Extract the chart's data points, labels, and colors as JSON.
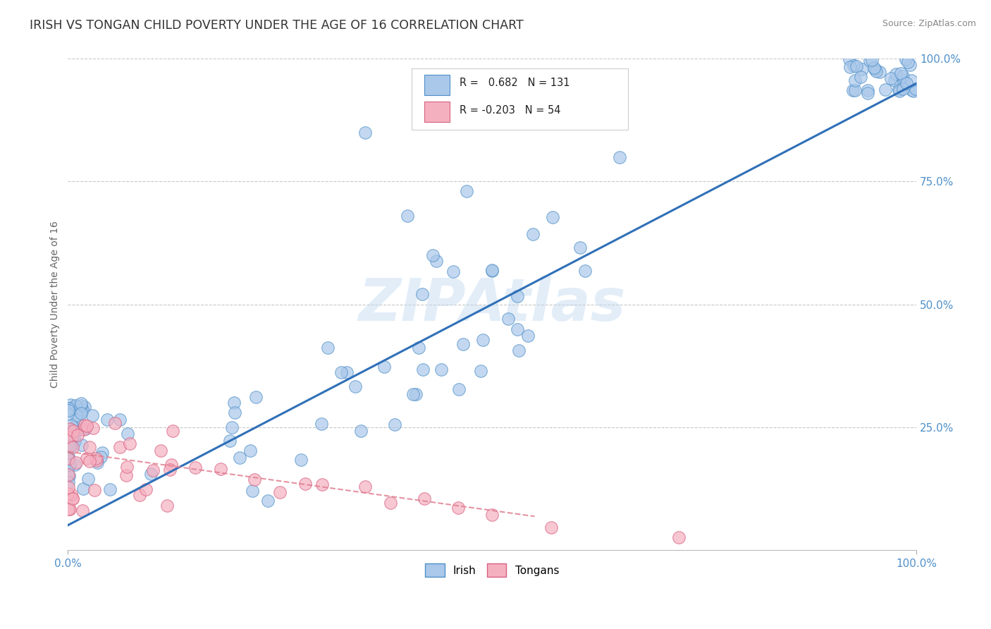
{
  "title": "IRISH VS TONGAN CHILD POVERTY UNDER THE AGE OF 16 CORRELATION CHART",
  "source": "Source: ZipAtlas.com",
  "ylabel": "Child Poverty Under the Age of 16",
  "xlim": [
    0.0,
    1.0
  ],
  "ylim": [
    0.0,
    1.0
  ],
  "irish_R": 0.682,
  "irish_N": 131,
  "tongan_R": -0.203,
  "tongan_N": 54,
  "irish_color": "#aac8ea",
  "irish_edge_color": "#5090c8",
  "tongan_color": "#f5b0c0",
  "tongan_edge_color": "#d86080",
  "irish_line_color": "#3070b8",
  "tongan_line_color": "#e08090",
  "legend_irish_label": "Irish",
  "legend_tongan_label": "Tongans",
  "watermark_text": "ZIPAtlas",
  "background_color": "#ffffff",
  "grid_color": "#c8c8c8",
  "tick_color": "#5090c8",
  "title_color": "#333333",
  "ylabel_color": "#666666",
  "source_color": "#888888"
}
